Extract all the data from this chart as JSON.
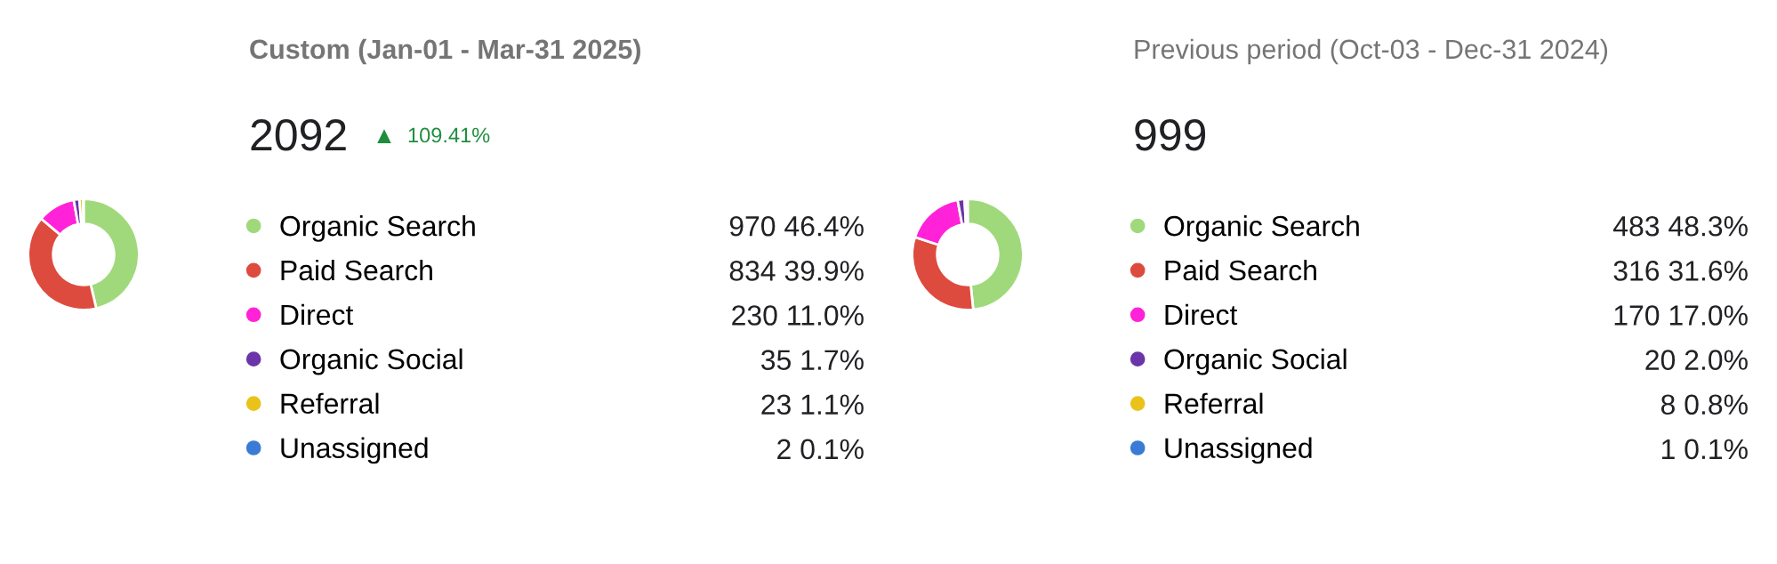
{
  "chart_data": [
    {
      "type": "donut",
      "title": "Custom (Jan-01 - Mar-31 2025)",
      "subtitle": "2092",
      "annotations": [
        "109.41%"
      ],
      "categories": [
        "Organic Search",
        "Paid Search",
        "Direct",
        "Organic Social",
        "Referral",
        "Unassigned"
      ],
      "values": [
        970,
        834,
        230,
        35,
        23,
        2
      ],
      "colors": [
        "#a0d97b",
        "#dd4b3e",
        "#ff22d8",
        "#6a35a8",
        "#e9c31a",
        "#3a7bd5"
      ],
      "value_labels": [
        "970 46.4%",
        "834 39.9%",
        "230 11.0%",
        "35 1.7%",
        "23 1.1%",
        "2 0.1%"
      ],
      "legend": "right"
    },
    {
      "type": "donut",
      "title": "Previous period (Oct-03 - Dec-31 2024)",
      "subtitle": "999",
      "categories": [
        "Organic Search",
        "Paid Search",
        "Direct",
        "Organic Social",
        "Referral",
        "Unassigned"
      ],
      "values": [
        483,
        316,
        170,
        20,
        8,
        1
      ],
      "colors": [
        "#a0d97b",
        "#dd4b3e",
        "#ff22d8",
        "#6a35a8",
        "#e9c31a",
        "#3a7bd5"
      ],
      "value_labels": [
        "483 48.3%",
        "316 31.6%",
        "170 17.0%",
        "20 2.0%",
        "8 0.8%",
        "1 0.1%"
      ],
      "legend": "right"
    }
  ]
}
